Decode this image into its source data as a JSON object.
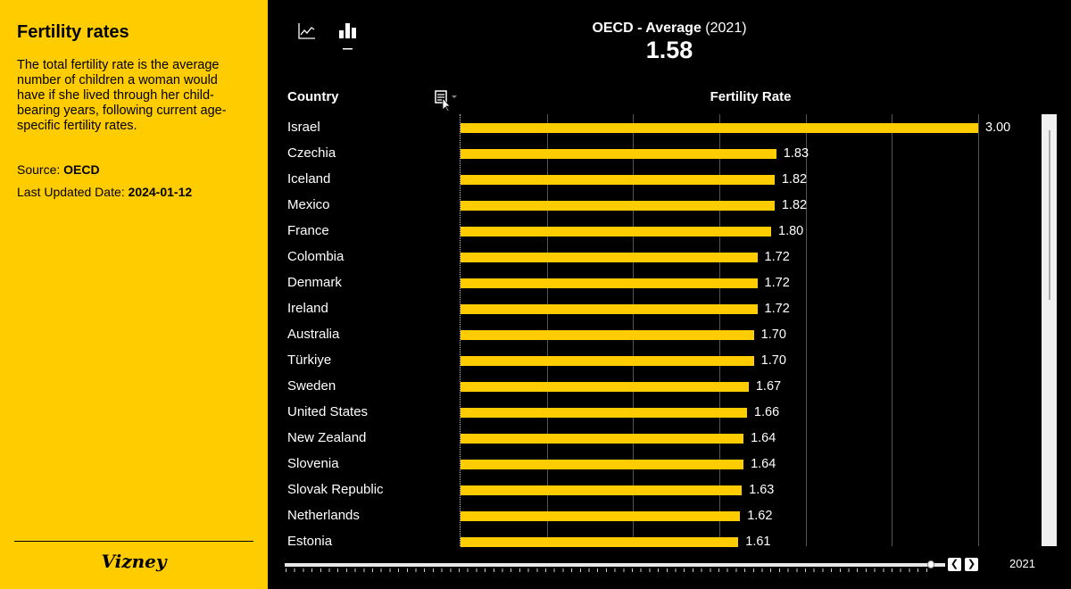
{
  "sidebar": {
    "title": "Fertility rates",
    "description": "The total fertility rate is the average number of children a woman would have if she lived through her child-bearing years, following current age-specific fertility rates.",
    "source_label": "Source: ",
    "source": "OECD",
    "updated_label": "Last Updated Date: ",
    "updated": "2024-01-12",
    "logo": "Vizney"
  },
  "header": {
    "kpi_name": "OECD - Average",
    "kpi_year": "(2021)",
    "kpi_value": "1.58",
    "icons": [
      "line-chart-icon",
      "bar-chart-icon"
    ],
    "active_view": "bar"
  },
  "table": {
    "col_country": "Country",
    "col_value": "Fertility Rate"
  },
  "colors": {
    "bar": "#ffcc00",
    "sidebar": "#ffcc00",
    "background": "#000000"
  },
  "chart_data": {
    "type": "bar",
    "orientation": "horizontal",
    "xlim": [
      0,
      3
    ],
    "grid": true,
    "categories": [
      "Israel",
      "Czechia",
      "Iceland",
      "Mexico",
      "France",
      "Colombia",
      "Denmark",
      "Ireland",
      "Australia",
      "Türkiye",
      "Sweden",
      "United States",
      "New Zealand",
      "Slovenia",
      "Slovak Republic",
      "Netherlands",
      "Estonia"
    ],
    "values": [
      3.0,
      1.83,
      1.82,
      1.82,
      1.8,
      1.72,
      1.72,
      1.72,
      1.7,
      1.7,
      1.67,
      1.66,
      1.64,
      1.64,
      1.63,
      1.62,
      1.61
    ],
    "xlabel": "Fertility Rate"
  },
  "timeline": {
    "year": "2021"
  }
}
